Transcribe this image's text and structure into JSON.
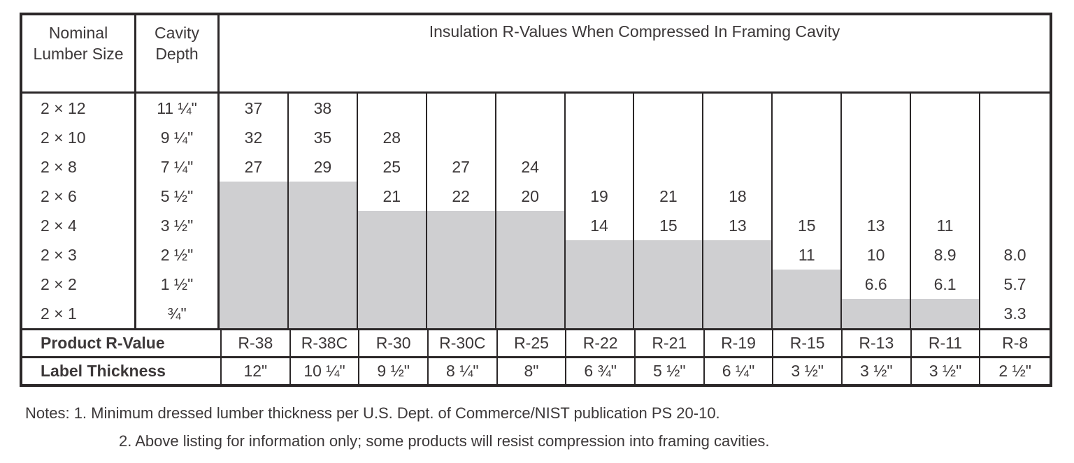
{
  "title": "Insulation R-Values When Compressed In Framing Cavity",
  "header": {
    "lumber": "Nominal Lumber Size",
    "cavity": "Cavity Depth"
  },
  "columns": [
    "R-38",
    "R-38C",
    "R-30",
    "R-30C",
    "R-25",
    "R-22",
    "R-21",
    "R-19",
    "R-15",
    "R-13",
    "R-11",
    "R-8"
  ],
  "rows": [
    {
      "size": "2 × 12",
      "depth": "11 ¼\"",
      "values": [
        "37",
        "38",
        "",
        "",
        "",
        "",
        "",
        "",
        "",
        "",
        "",
        ""
      ]
    },
    {
      "size": "2 × 10",
      "depth": "9 ¼\"",
      "values": [
        "32",
        "35",
        "28",
        "",
        "",
        "",
        "",
        "",
        "",
        "",
        "",
        ""
      ]
    },
    {
      "size": "2 × 8",
      "depth": "7 ¼\"",
      "values": [
        "27",
        "29",
        "25",
        "27",
        "24",
        "",
        "",
        "",
        "",
        "",
        "",
        ""
      ]
    },
    {
      "size": "2 × 6",
      "depth": "5 ½\"",
      "values": [
        "",
        "",
        "21",
        "22",
        "20",
        "19",
        "21",
        "18",
        "",
        "",
        "",
        ""
      ]
    },
    {
      "size": "2 × 4",
      "depth": "3 ½\"",
      "values": [
        "",
        "",
        "",
        "",
        "",
        "14",
        "15",
        "13",
        "15",
        "13",
        "11",
        ""
      ]
    },
    {
      "size": "2 × 3",
      "depth": "2 ½\"",
      "values": [
        "",
        "",
        "",
        "",
        "",
        "",
        "",
        "",
        "11",
        "10",
        "8.9",
        "8.0"
      ]
    },
    {
      "size": "2 × 2",
      "depth": "1 ½\"",
      "values": [
        "",
        "",
        "",
        "",
        "",
        "",
        "",
        "",
        "",
        "6.6",
        "6.1",
        "5.7"
      ]
    },
    {
      "size": "2 × 1",
      "depth": "¾\"",
      "values": [
        "",
        "",
        "",
        "",
        "",
        "",
        "",
        "",
        "",
        "",
        "",
        "3.3"
      ]
    }
  ],
  "shaded_from_row": [
    3,
    3,
    4,
    4,
    4,
    5,
    5,
    5,
    6,
    7,
    7,
    null
  ],
  "footer": {
    "product_label": "Product R-Value",
    "thickness_label": "Label Thickness",
    "label_thickness": [
      "12\"",
      "10 ¼\"",
      "9 ½\"",
      "8 ¼\"",
      "8\"",
      "6 ¾\"",
      "5 ½\"",
      "6 ¼\"",
      "3 ½\"",
      "3 ½\"",
      "3 ½\"",
      "2 ½\""
    ]
  },
  "notes": {
    "line1": "Notes: 1. Minimum dressed lumber thickness per U.S. Dept. of Commerce/NIST publication PS 20-10.",
    "line2": "2. Above listing for information only; some products will resist compression into framing cavities."
  },
  "colors": {
    "shaded_cell": "#cfcfd1",
    "border": "#2b2728",
    "text": "#3c3839"
  }
}
